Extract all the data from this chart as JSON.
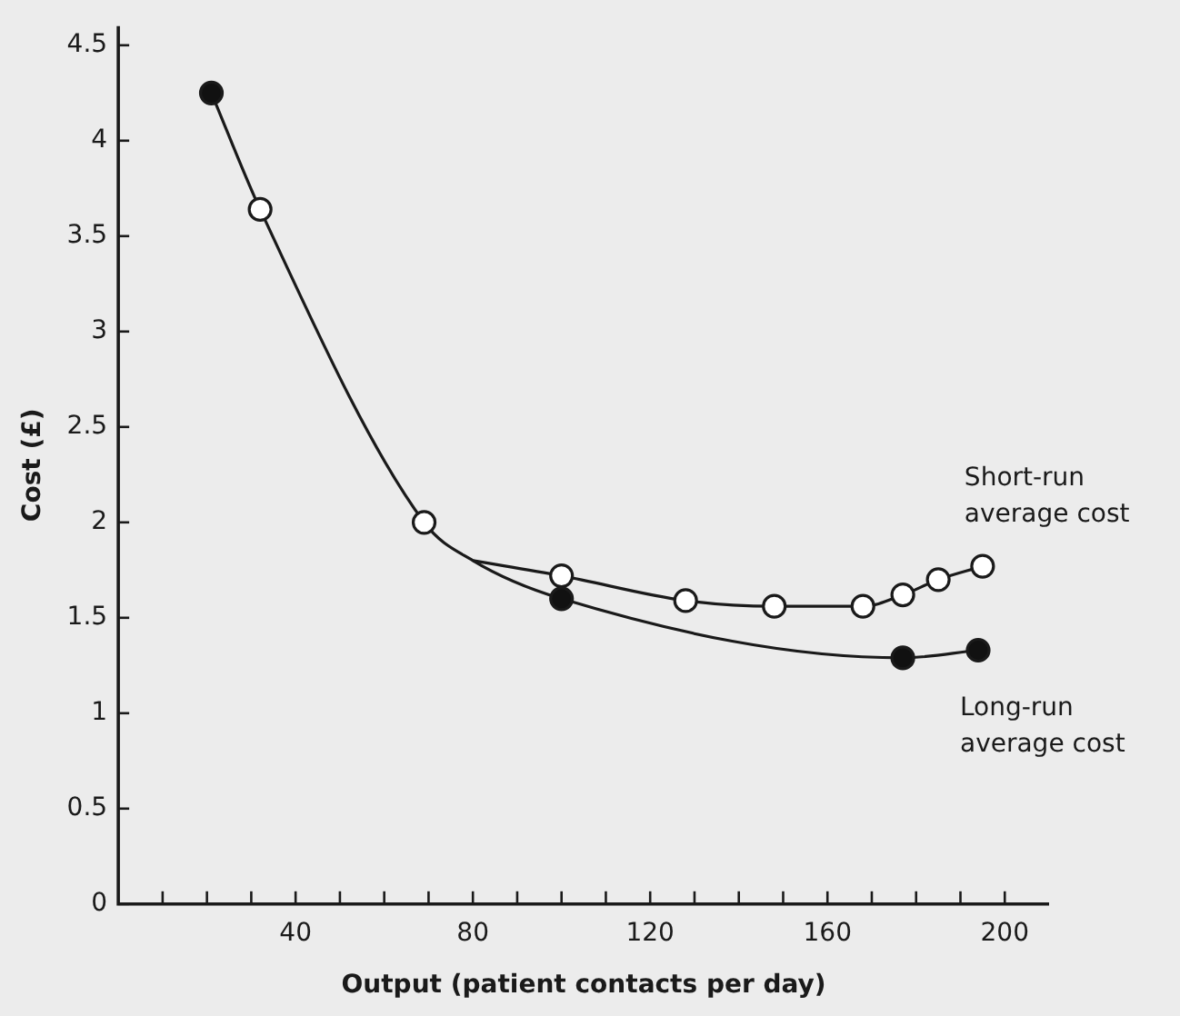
{
  "chart_data": {
    "type": "line",
    "xlabel": "Output (patient contacts per day)",
    "ylabel": "Cost (£)",
    "xlim": [
      0,
      210
    ],
    "xticks": [
      {
        "value": 10,
        "label": null
      },
      {
        "value": 20,
        "label": null
      },
      {
        "value": 30,
        "label": null
      },
      40,
      {
        "value": 50,
        "label": null
      },
      {
        "value": 60,
        "label": null
      },
      {
        "value": 70,
        "label": null
      },
      80,
      {
        "value": 90,
        "label": null
      },
      {
        "value": 100,
        "label": null
      },
      {
        "value": 110,
        "label": null
      },
      120,
      {
        "value": 130,
        "label": null
      },
      {
        "value": 140,
        "label": null
      },
      {
        "value": 150,
        "label": null
      },
      160,
      {
        "value": 170,
        "label": null
      },
      {
        "value": 180,
        "label": null
      },
      {
        "value": 190,
        "label": null
      },
      200
    ],
    "ylim": [
      0,
      4.6
    ],
    "yticks": [
      0,
      0.5,
      1,
      1.5,
      2,
      2.5,
      3,
      3.5,
      4,
      4.5
    ],
    "legend": false,
    "grid": false,
    "line_style": "solid",
    "series": [
      {
        "name": "Long-run average cost",
        "marker": "none",
        "color": "#1a1a1a",
        "x": [
          21,
          32,
          69,
          80,
          100,
          177,
          194
        ],
        "values": [
          4.25,
          3.64,
          2,
          1.8,
          1.6,
          1.29,
          1.33
        ]
      },
      {
        "name": "Short-run average cost",
        "marker": "none",
        "color": "#1a1a1a",
        "x": [
          80,
          100,
          128,
          148,
          168,
          177,
          185,
          195
        ],
        "values": [
          1.8,
          1.72,
          1.59,
          1.56,
          1.56,
          1.62,
          1.7,
          1.77
        ]
      },
      {
        "type": "scatter",
        "marker": "circle",
        "color": "#111111",
        "x": [
          21,
          100,
          177,
          194
        ],
        "values": [
          4.25,
          1.6,
          1.29,
          1.33
        ]
      },
      {
        "type": "scatter",
        "marker": "circle",
        "color": "#ffffff",
        "x": [
          32,
          69,
          100,
          128,
          148,
          168,
          177,
          185,
          195
        ],
        "values": [
          3.64,
          2,
          1.72,
          1.59,
          1.56,
          1.56,
          1.62,
          1.7,
          1.77
        ]
      }
    ]
  }
}
